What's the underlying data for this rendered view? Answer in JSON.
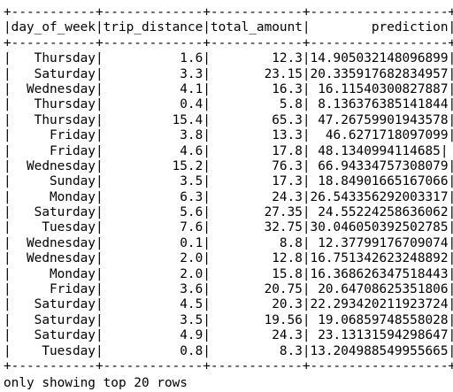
{
  "table": {
    "border": "+-----------+-------------+------------+------------------+",
    "header": "|day_of_week|trip_distance|total_amount|        prediction|",
    "columns": [
      "day_of_week",
      "trip_distance",
      "total_amount",
      "prediction"
    ],
    "rows": [
      "|   Thursday|          1.6|        12.3|14.905032148096899|",
      "|   Saturday|          3.3|       23.15|20.335917682834957|",
      "|  Wednesday|          4.1|        16.3| 16.11540300827887|",
      "|   Thursday|          0.4|         5.8| 8.136376385141844|",
      "|   Thursday|         15.4|        65.3| 47.26759901943578|",
      "|     Friday|          3.8|        13.3|  46.6271718097099|",
      "|     Friday|          4.6|        17.8| 48.1340994114685|",
      "|  Wednesday|         15.2|        76.3| 66.94334757308079|",
      "|     Sunday|          3.5|        17.3| 18.84901665167066|",
      "|     Monday|          6.3|        24.3|26.543356292003317|",
      "|   Saturday|          5.6|       27.35| 24.55224258636062|",
      "|    Tuesday|          7.6|       32.75|30.046050392502785|",
      "|  Wednesday|          0.1|         8.8| 12.37799176709074|",
      "|  Wednesday|          2.0|        12.8|16.751342623248892|",
      "|     Monday|          2.0|        15.8|16.368626347518443|",
      "|     Friday|          3.6|       20.75| 20.64708625351806|",
      "|   Saturday|          4.5|        20.3|22.293420211923724|",
      "|   Saturday|          3.5|       19.56| 19.06859748558028|",
      "|   Saturday|          4.9|        24.3| 23.13131594298647|",
      "|    Tuesday|          0.8|         8.3|13.204988549955665|"
    ]
  },
  "footer": "only showing top 20 rows"
}
